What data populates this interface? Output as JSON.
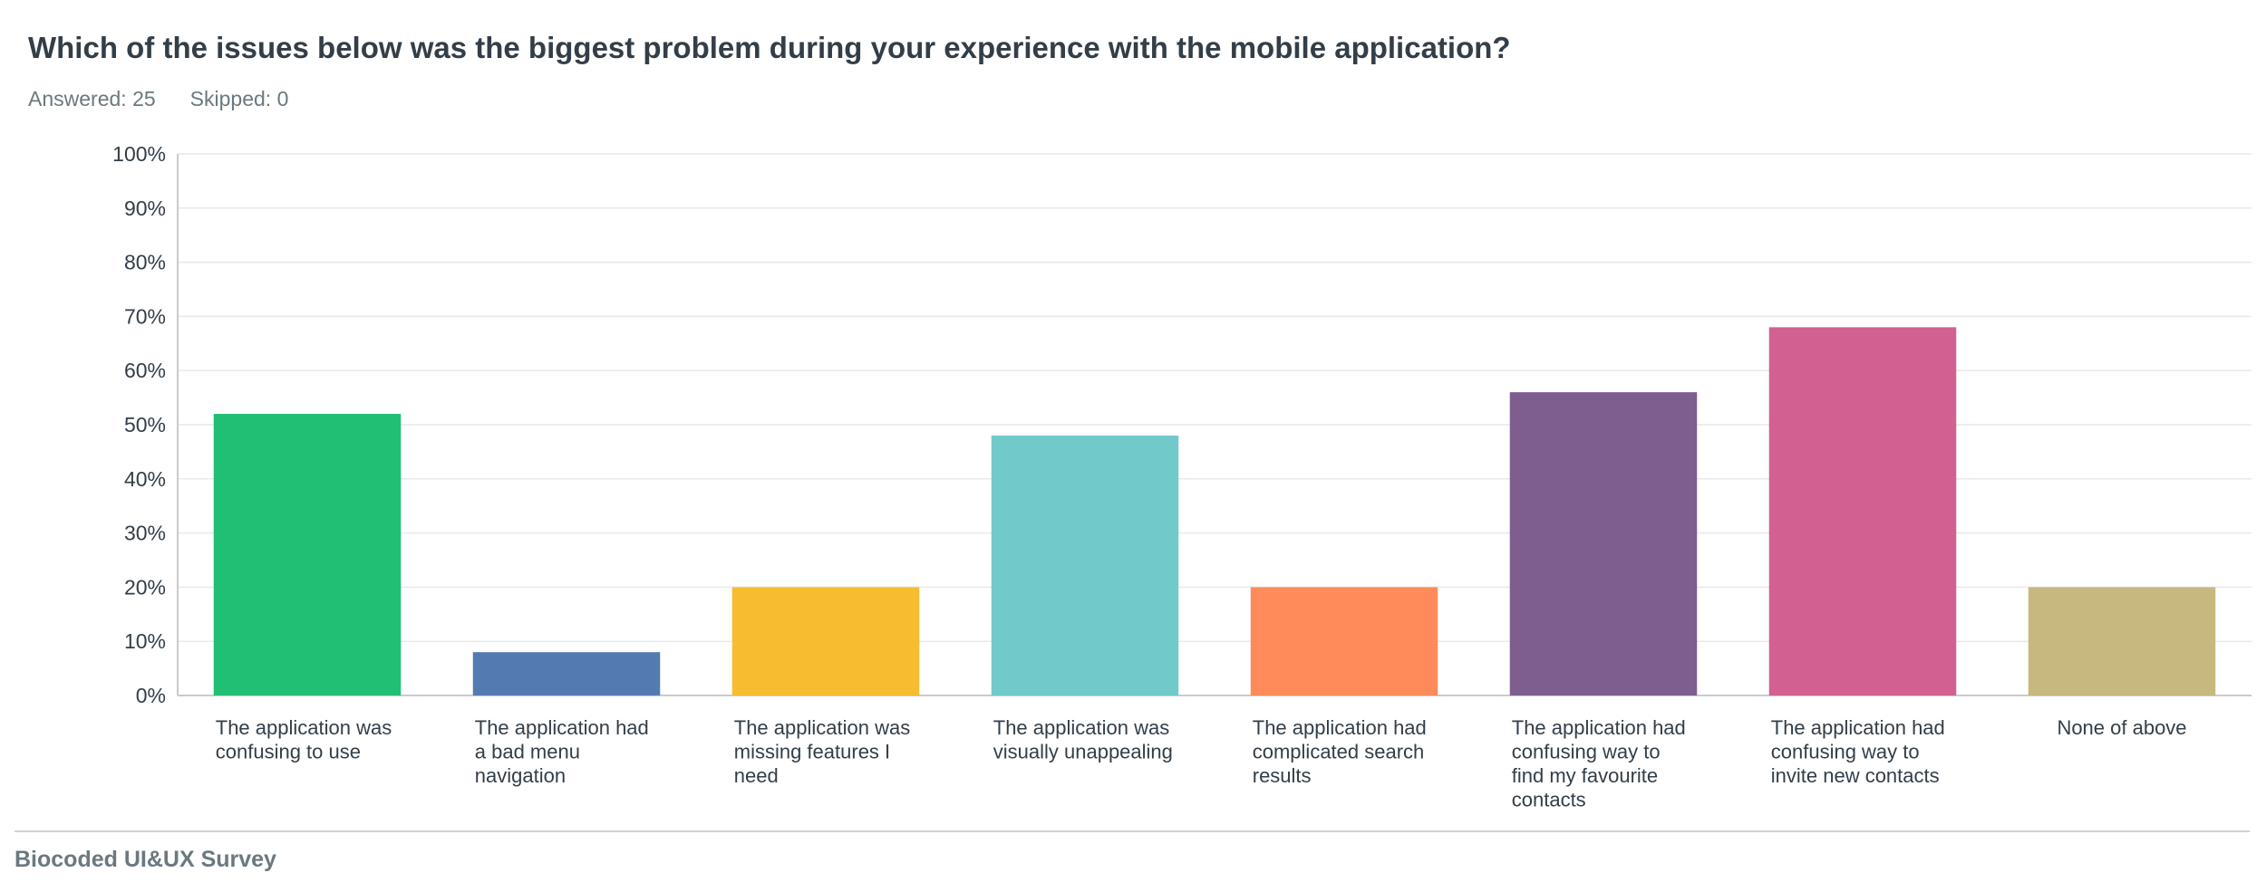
{
  "question": {
    "title": "Which of the issues below was the biggest problem during your experience with the mobile application?"
  },
  "stats": {
    "answered_label": "Answered:",
    "answered_value": "25",
    "skipped_label": "Skipped:",
    "skipped_value": "0"
  },
  "chart_data": {
    "type": "bar",
    "title": "Which of the issues below was the biggest problem during your experience with the mobile application?",
    "xlabel": "",
    "ylabel": "",
    "ylim": [
      0,
      100
    ],
    "yticks": [
      "0%",
      "10%",
      "20%",
      "30%",
      "40%",
      "50%",
      "60%",
      "70%",
      "80%",
      "90%",
      "100%"
    ],
    "grid": true,
    "legend": "none",
    "categories": [
      [
        "The application was",
        "confusing to use"
      ],
      [
        "The application had",
        "a bad menu",
        "navigation"
      ],
      [
        "The application was",
        "missing features I",
        "need"
      ],
      [
        "The application was",
        "visually unappealing"
      ],
      [
        "The application had",
        "complicated search",
        "results"
      ],
      [
        "The application had",
        "confusing way to",
        "find my favourite",
        "contacts"
      ],
      [
        "The application had",
        "confusing way to",
        "invite new contacts"
      ],
      [
        "None of above"
      ]
    ],
    "values": [
      52,
      8,
      20,
      48,
      20,
      56,
      68,
      20
    ],
    "colors": [
      "#21bf73",
      "#537bb1",
      "#f7bd30",
      "#71c9ca",
      "#fe8b59",
      "#7d5e8f",
      "#d26090",
      "#c6b87f"
    ]
  },
  "footer": {
    "text": "Biocoded UI&UX Survey"
  }
}
